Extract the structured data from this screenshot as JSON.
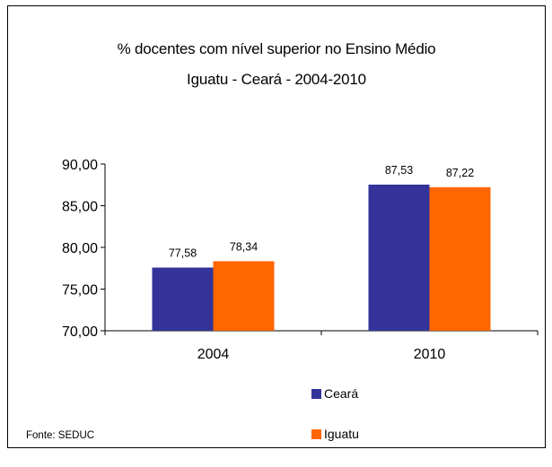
{
  "chart_data": {
    "type": "bar",
    "title": "% docentes com nível  superior no Ensino Médio",
    "subtitle": "Iguatu -  Ceará - 2004-2010",
    "categories": [
      "2004",
      "2010"
    ],
    "series": [
      {
        "name": "Ceará",
        "values": [
          77.58,
          87.53
        ],
        "labels": [
          "77,58",
          "87,53"
        ],
        "color": "#333399"
      },
      {
        "name": "Iguatu",
        "values": [
          78.34,
          87.22
        ],
        "labels": [
          "78,34",
          "87,22"
        ],
        "color": "#FF6600"
      }
    ],
    "ylim": [
      70,
      90
    ],
    "yticks": [
      70,
      75,
      80,
      85,
      90
    ],
    "ytick_labels": [
      "70,00",
      "75,00",
      "80,00",
      "85,00",
      "90,00"
    ],
    "grid": false,
    "legend_position": "bottom-right",
    "xlabel": "",
    "ylabel": ""
  },
  "source": "Fonte: SEDUC"
}
